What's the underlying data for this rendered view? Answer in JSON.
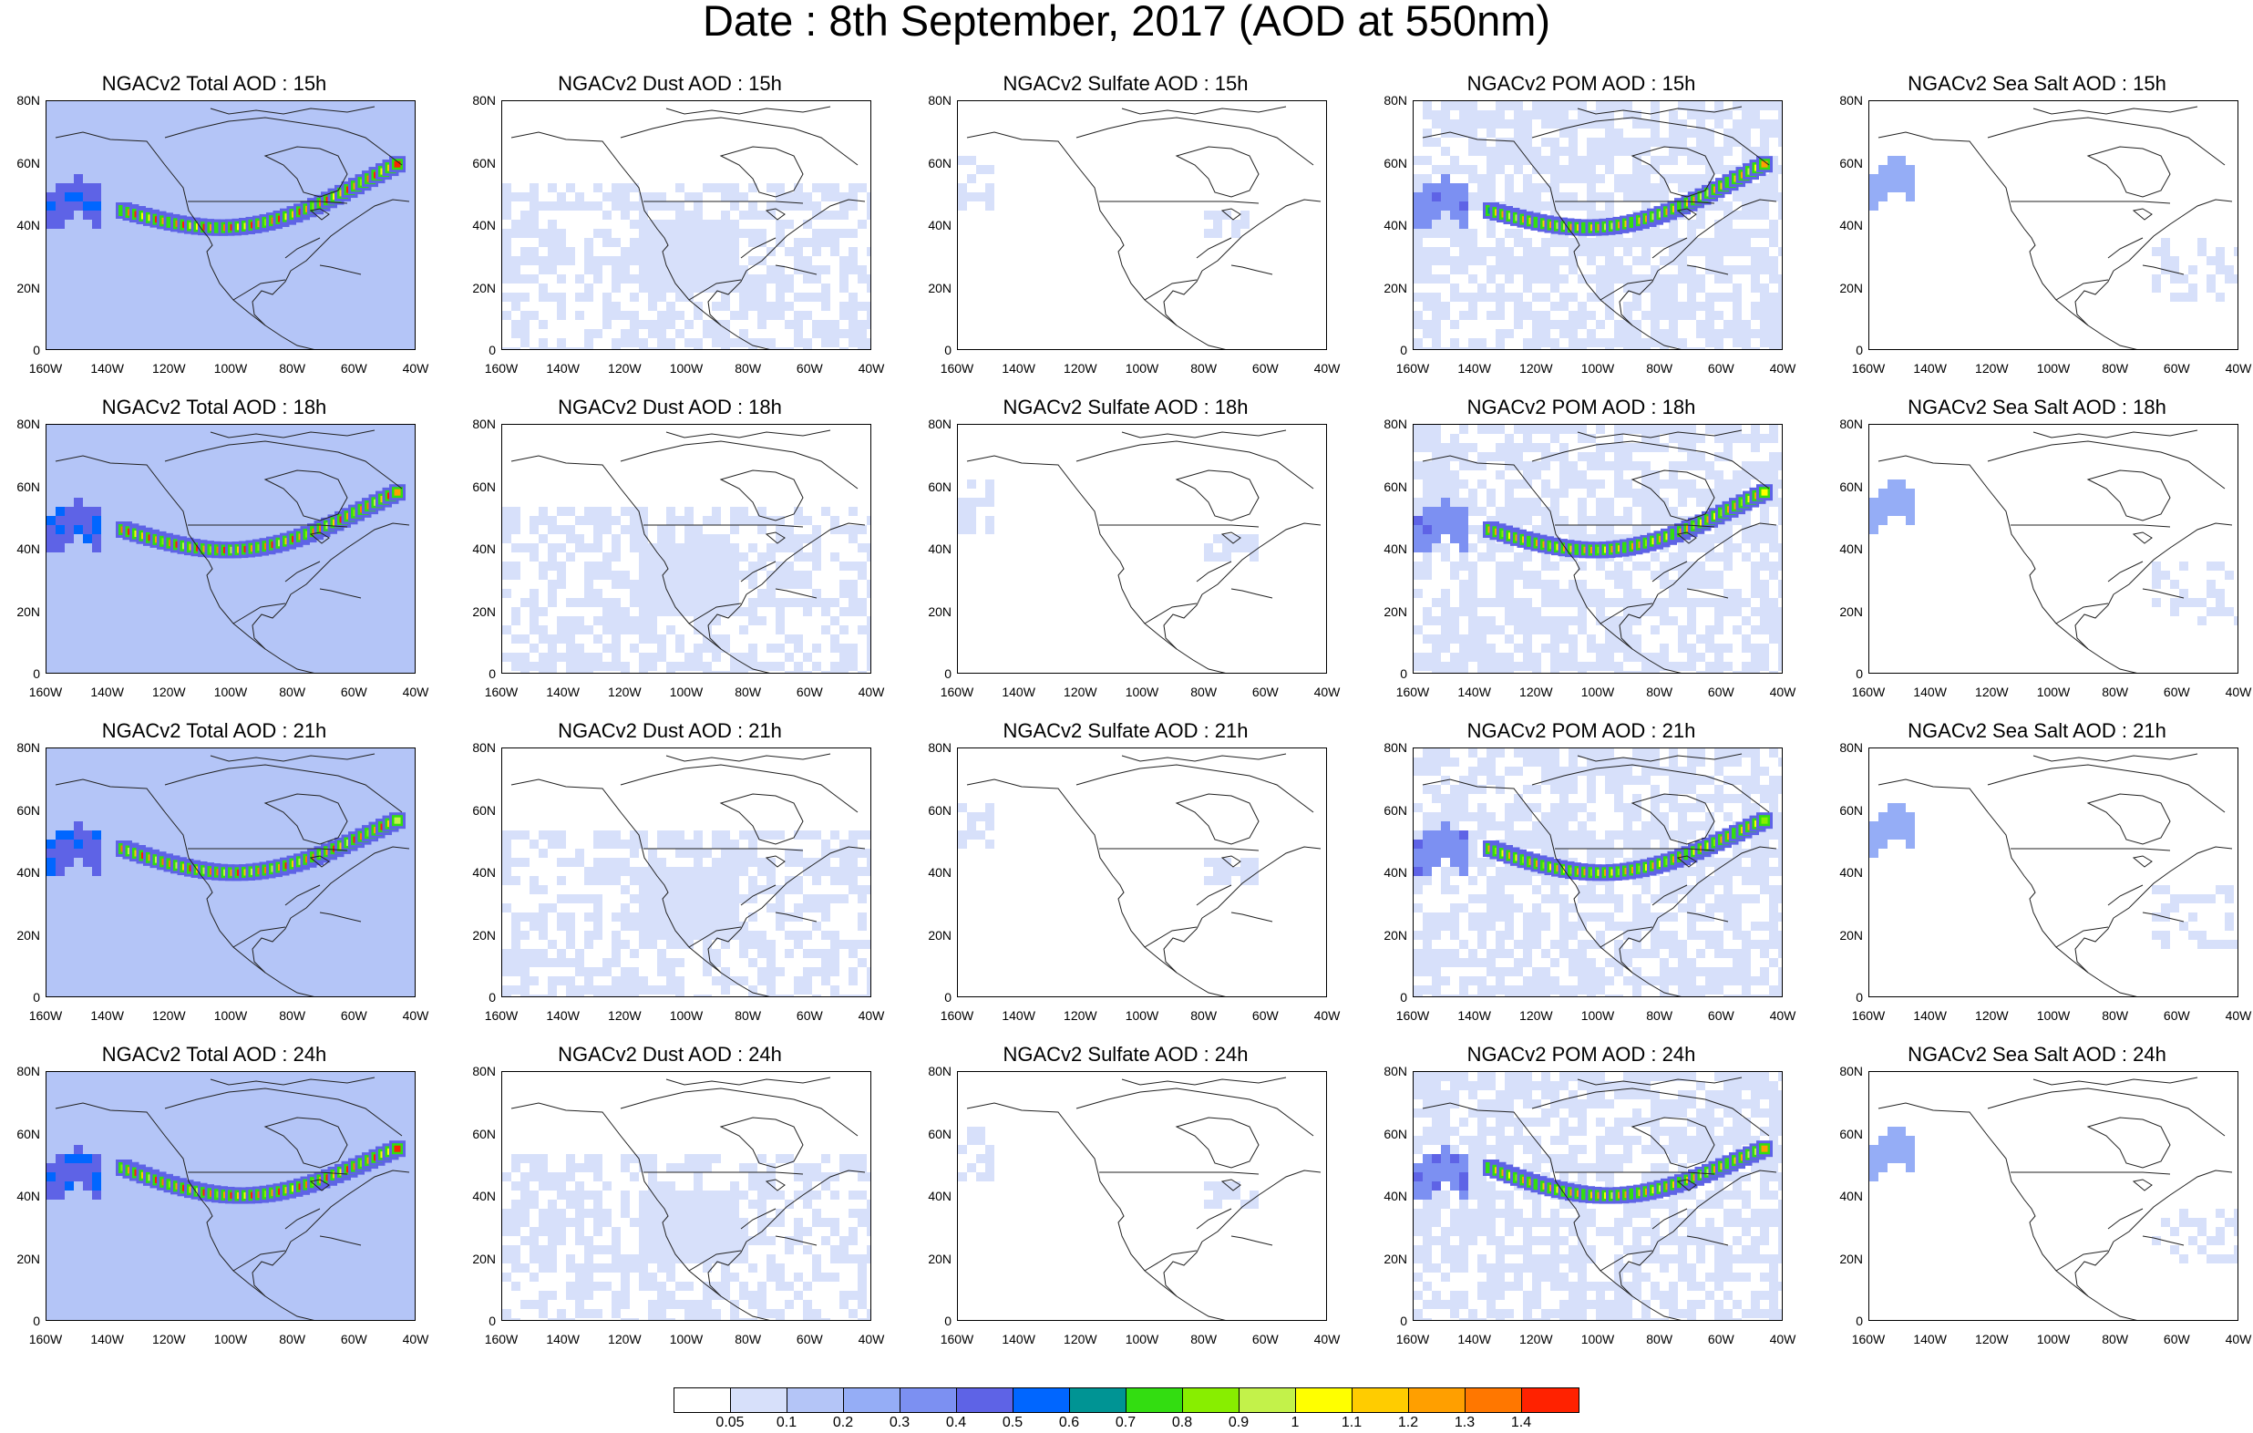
{
  "title": "Date : 8th September, 2017 (AOD at 550nm)",
  "y_ticks": [
    "80N",
    "60N",
    "40N",
    "20N",
    "0"
  ],
  "x_ticks": [
    "160W",
    "140W",
    "120W",
    "100W",
    "80W",
    "60W",
    "40W"
  ],
  "colorbar": {
    "colors": [
      "#ffffff",
      "#d7e0fa",
      "#b4c5f7",
      "#95adf6",
      "#7c90f2",
      "#5e63e6",
      "#0066ff",
      "#009494",
      "#33dd11",
      "#88ee00",
      "#c3f24a",
      "#ffff00",
      "#ffcc00",
      "#ff9f00",
      "#ff7700",
      "#ff2200"
    ],
    "labels": [
      "0.05",
      "0.1",
      "0.2",
      "0.3",
      "0.4",
      "0.5",
      "0.6",
      "0.7",
      "0.8",
      "0.9",
      "1",
      "1.1",
      "1.2",
      "1.3",
      "1.4"
    ]
  },
  "panels": [
    {
      "title": "NGACv2 Total AOD : 15h",
      "species": "total",
      "hour": "15h"
    },
    {
      "title": "NGACv2 Dust AOD : 15h",
      "species": "dust",
      "hour": "15h"
    },
    {
      "title": "NGACv2 Sulfate AOD : 15h",
      "species": "sulfate",
      "hour": "15h"
    },
    {
      "title": "NGACv2 POM AOD : 15h",
      "species": "pom",
      "hour": "15h"
    },
    {
      "title": "NGACv2 Sea Salt AOD : 15h",
      "species": "seasalt",
      "hour": "15h"
    },
    {
      "title": "NGACv2 Total AOD : 18h",
      "species": "total",
      "hour": "18h"
    },
    {
      "title": "NGACv2 Dust AOD : 18h",
      "species": "dust",
      "hour": "18h"
    },
    {
      "title": "NGACv2 Sulfate AOD : 18h",
      "species": "sulfate",
      "hour": "18h"
    },
    {
      "title": "NGACv2 POM AOD : 18h",
      "species": "pom",
      "hour": "18h"
    },
    {
      "title": "NGACv2 Sea Salt AOD : 18h",
      "species": "seasalt",
      "hour": "18h"
    },
    {
      "title": "NGACv2 Total AOD : 21h",
      "species": "total",
      "hour": "21h"
    },
    {
      "title": "NGACv2 Dust AOD : 21h",
      "species": "dust",
      "hour": "21h"
    },
    {
      "title": "NGACv2 Sulfate AOD : 21h",
      "species": "sulfate",
      "hour": "21h"
    },
    {
      "title": "NGACv2 POM AOD : 21h",
      "species": "pom",
      "hour": "21h"
    },
    {
      "title": "NGACv2 Sea Salt AOD : 21h",
      "species": "seasalt",
      "hour": "21h"
    },
    {
      "title": "NGACv2 Total AOD : 24h",
      "species": "total",
      "hour": "24h"
    },
    {
      "title": "NGACv2 Dust AOD : 24h",
      "species": "dust",
      "hour": "24h"
    },
    {
      "title": "NGACv2 Sulfate AOD : 24h",
      "species": "sulfate",
      "hour": "24h"
    },
    {
      "title": "NGACv2 POM AOD : 24h",
      "species": "pom",
      "hour": "24h"
    },
    {
      "title": "NGACv2 Sea Salt  AOD : 24h",
      "species": "seasalt",
      "hour": "24h"
    }
  ]
}
